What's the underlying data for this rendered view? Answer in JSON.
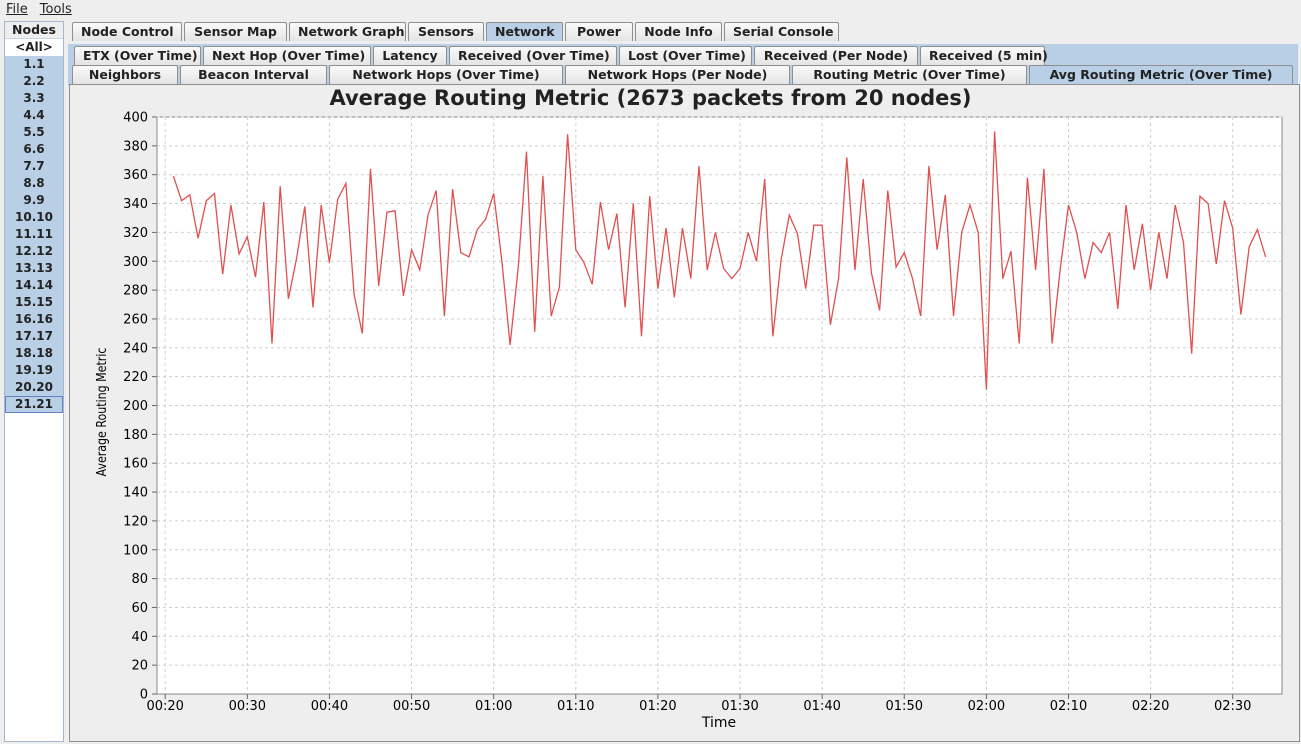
{
  "menu": [
    "File",
    "Tools"
  ],
  "nodes": {
    "header": "Nodes",
    "items": [
      "<All>",
      "1.1",
      "2.2",
      "3.3",
      "4.4",
      "5.5",
      "6.6",
      "7.7",
      "8.8",
      "9.9",
      "10.10",
      "11.11",
      "12.12",
      "13.13",
      "14.14",
      "15.15",
      "16.16",
      "17.17",
      "18.18",
      "19.19",
      "20.20",
      "21.21"
    ]
  },
  "main_tabs": [
    "Node Control",
    "Sensor Map",
    "Network Graph",
    "Sensors",
    "Network",
    "Power",
    "Node Info",
    "Serial Console"
  ],
  "main_tab_active": "Network",
  "sub_tabs_row1": [
    "ETX (Over Time)",
    "Next Hop (Over Time)",
    "Latency",
    "Received (Over Time)",
    "Lost (Over Time)",
    "Received (Per Node)",
    "Received (5 min)"
  ],
  "sub_tabs_row2": [
    "Neighbors",
    "Beacon Interval",
    "Network Hops (Over Time)",
    "Network Hops (Per Node)",
    "Routing Metric (Over Time)",
    "Avg Routing Metric (Over Time)"
  ],
  "sub_tab_active": "Avg Routing Metric (Over Time)",
  "colors": {
    "line": "#e05050",
    "selection": "#b8cfe5"
  },
  "chart_data": {
    "type": "line",
    "title": "Average Routing Metric (2673 packets from 20 nodes)",
    "xlabel": "Time",
    "ylabel": "Average Routing Metric",
    "ylim": [
      0,
      400
    ],
    "xlim": [
      "00:19",
      "02:36"
    ],
    "y_ticks": [
      0,
      20,
      40,
      60,
      80,
      100,
      120,
      140,
      160,
      180,
      200,
      220,
      240,
      260,
      280,
      300,
      320,
      340,
      360,
      380,
      400
    ],
    "x_ticks": [
      "00:20",
      "00:30",
      "00:40",
      "00:50",
      "01:00",
      "01:10",
      "01:20",
      "01:30",
      "01:40",
      "01:50",
      "02:00",
      "02:10",
      "02:20",
      "02:30"
    ],
    "grid": true,
    "series": [
      {
        "color": "#e05050",
        "points": [
          [
            "00:21",
            359
          ],
          [
            "00:22",
            342
          ],
          [
            "00:23",
            346
          ],
          [
            "00:24",
            316
          ],
          [
            "00:25",
            342
          ],
          [
            "00:26",
            347
          ],
          [
            "00:27",
            291
          ],
          [
            "00:28",
            339
          ],
          [
            "00:29",
            305
          ],
          [
            "00:30",
            317
          ],
          [
            "00:31",
            289
          ],
          [
            "00:32",
            341
          ],
          [
            "00:33",
            243
          ],
          [
            "00:34",
            352
          ],
          [
            "00:35",
            274
          ],
          [
            "00:36",
            302
          ],
          [
            "00:37",
            338
          ],
          [
            "00:38",
            268
          ],
          [
            "00:39",
            339
          ],
          [
            "00:40",
            299
          ],
          [
            "00:41",
            343
          ],
          [
            "00:42",
            354
          ],
          [
            "00:43",
            277
          ],
          [
            "00:44",
            250
          ],
          [
            "00:45",
            364
          ],
          [
            "00:46",
            283
          ],
          [
            "00:47",
            334
          ],
          [
            "00:48",
            335
          ],
          [
            "00:49",
            276
          ],
          [
            "00:50",
            308
          ],
          [
            "00:51",
            294
          ],
          [
            "00:52",
            332
          ],
          [
            "00:53",
            349
          ],
          [
            "00:54",
            262
          ],
          [
            "00:55",
            350
          ],
          [
            "00:56",
            306
          ],
          [
            "00:57",
            303
          ],
          [
            "00:58",
            322
          ],
          [
            "00:59",
            329
          ],
          [
            "01:00",
            347
          ],
          [
            "01:01",
            300
          ],
          [
            "01:02",
            242
          ],
          [
            "01:03",
            296
          ],
          [
            "01:04",
            376
          ],
          [
            "01:05",
            251
          ],
          [
            "01:06",
            359
          ],
          [
            "01:07",
            262
          ],
          [
            "01:08",
            282
          ],
          [
            "01:09",
            388
          ],
          [
            "01:10",
            308
          ],
          [
            "01:11",
            299
          ],
          [
            "01:12",
            284
          ],
          [
            "01:13",
            341
          ],
          [
            "01:14",
            308
          ],
          [
            "01:15",
            333
          ],
          [
            "01:16",
            268
          ],
          [
            "01:17",
            340
          ],
          [
            "01:18",
            248
          ],
          [
            "01:19",
            345
          ],
          [
            "01:20",
            281
          ],
          [
            "01:21",
            323
          ],
          [
            "01:22",
            275
          ],
          [
            "01:23",
            323
          ],
          [
            "01:24",
            288
          ],
          [
            "01:25",
            366
          ],
          [
            "01:26",
            294
          ],
          [
            "01:27",
            320
          ],
          [
            "01:28",
            295
          ],
          [
            "01:29",
            288
          ],
          [
            "01:30",
            295
          ],
          [
            "01:31",
            320
          ],
          [
            "01:32",
            300
          ],
          [
            "01:33",
            357
          ],
          [
            "01:34",
            248
          ],
          [
            "01:35",
            301
          ],
          [
            "01:36",
            332
          ],
          [
            "01:37",
            319
          ],
          [
            "01:38",
            281
          ],
          [
            "01:39",
            325
          ],
          [
            "01:40",
            325
          ],
          [
            "01:41",
            256
          ],
          [
            "01:42",
            288
          ],
          [
            "01:43",
            372
          ],
          [
            "01:44",
            294
          ],
          [
            "01:45",
            357
          ],
          [
            "01:46",
            292
          ],
          [
            "01:47",
            266
          ],
          [
            "01:48",
            349
          ],
          [
            "01:49",
            296
          ],
          [
            "01:50",
            306
          ],
          [
            "01:51",
            288
          ],
          [
            "01:52",
            262
          ],
          [
            "01:53",
            366
          ],
          [
            "01:54",
            308
          ],
          [
            "01:55",
            346
          ],
          [
            "01:56",
            262
          ],
          [
            "01:57",
            320
          ],
          [
            "01:58",
            339
          ],
          [
            "01:59",
            320
          ],
          [
            "02:00",
            211
          ],
          [
            "02:01",
            390
          ],
          [
            "02:02",
            288
          ],
          [
            "02:03",
            307
          ],
          [
            "02:04",
            243
          ],
          [
            "02:05",
            358
          ],
          [
            "02:06",
            294
          ],
          [
            "02:07",
            364
          ],
          [
            "02:08",
            243
          ],
          [
            "02:09",
            295
          ],
          [
            "02:10",
            339
          ],
          [
            "02:11",
            320
          ],
          [
            "02:12",
            288
          ],
          [
            "02:13",
            313
          ],
          [
            "02:14",
            306
          ],
          [
            "02:15",
            320
          ],
          [
            "02:16",
            267
          ],
          [
            "02:17",
            339
          ],
          [
            "02:18",
            294
          ],
          [
            "02:19",
            326
          ],
          [
            "02:20",
            280
          ],
          [
            "02:21",
            320
          ],
          [
            "02:22",
            288
          ],
          [
            "02:23",
            339
          ],
          [
            "02:24",
            313
          ],
          [
            "02:25",
            236
          ],
          [
            "02:26",
            345
          ],
          [
            "02:27",
            340
          ],
          [
            "02:28",
            298
          ],
          [
            "02:29",
            342
          ],
          [
            "02:30",
            323
          ],
          [
            "02:31",
            263
          ],
          [
            "02:32",
            310
          ],
          [
            "02:33",
            322
          ],
          [
            "02:34",
            303
          ]
        ]
      }
    ]
  }
}
